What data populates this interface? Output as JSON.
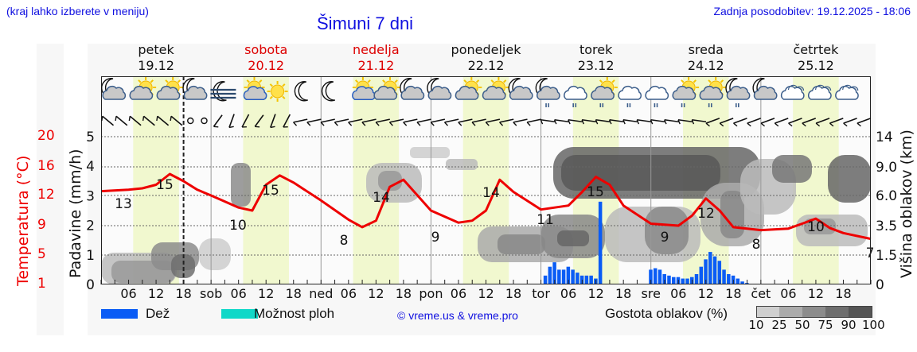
{
  "header": {
    "hint": "(kraj lahko izberete v meniju)",
    "title": "Šimuni 7 dni",
    "updated": "Zadnja posodobitev: 19.12.2025 - 18:06"
  },
  "days": [
    {
      "name": "petek",
      "date": "19.12",
      "weekend": false
    },
    {
      "name": "sobota",
      "date": "20.12",
      "weekend": true
    },
    {
      "name": "nedelja",
      "date": "21.12",
      "weekend": true
    },
    {
      "name": "ponedeljek",
      "date": "22.12",
      "weekend": false
    },
    {
      "name": "torek",
      "date": "23.12",
      "weekend": false
    },
    {
      "name": "sreda",
      "date": "24.12",
      "weekend": false
    },
    {
      "name": "četrtek",
      "date": "25.12",
      "weekend": false
    }
  ],
  "axes": {
    "temperature_label": "Temperatura (°C)",
    "temperature_ticks": [
      "20",
      "16",
      "12",
      "9",
      "5",
      "1"
    ],
    "precip_label": "Padavine (mm/h)",
    "precip_ticks": [
      "5",
      "4",
      "3",
      "2",
      "1",
      "0"
    ],
    "cloud_height_label": "Višina oblakov (km)",
    "cloud_height_ticks": [
      "14",
      "9.0",
      "6.0",
      "3.5",
      "1.5",
      "0"
    ],
    "x_ticks": [
      "06",
      "12",
      "18",
      "sob",
      "06",
      "12",
      "18",
      "ned",
      "06",
      "12",
      "18",
      "pon",
      "06",
      "12",
      "18",
      "tor",
      "06",
      "12",
      "18",
      "sre",
      "06",
      "12",
      "18",
      "čet",
      "06",
      "12",
      "18"
    ]
  },
  "icons_row": [
    "moon-cloud",
    "sun-cloud",
    "sun-cloud",
    "moon-cloud",
    "moon-fog",
    "sun-small-cloud",
    "sun",
    "moon",
    "moon",
    "sun-small-cloud",
    "sun-cloud",
    "moon-cloud",
    "moon-cloud",
    "sun-cloud",
    "sun-cloud",
    "moon-cloud",
    "moon-cloud-rain",
    "cloud-rain",
    "sun-cloud-rain",
    "cloud-rain",
    "cloud-rain",
    "sun-cloud-rain",
    "sun-cloud-rain",
    "moon-cloud-rain",
    "moon-cloud",
    "cloud",
    "cloud",
    "cloud"
  ],
  "legend": {
    "rain": "Dež",
    "rain_color": "#0a5cf5",
    "showers": "Možnost ploh",
    "showers_color": "#10d8c8",
    "copyright": "© vreme.us & vreme.pro",
    "cloud_density_label": "Gostota oblakov (%)",
    "cloud_density_ticks": [
      "10",
      "25",
      "50",
      "75",
      "90",
      "100"
    ],
    "cloud_density_colors": [
      "#cfcfcf",
      "#ababab",
      "#8c8c8c",
      "#6e6e6e",
      "#555555"
    ]
  },
  "chart_data": {
    "type": "line",
    "title": "Šimuni 7 dni",
    "xlabel": "",
    "ylabel": "Temperatura (°C) / Padavine (mm/h)",
    "x_unit": "hours from 19.12 00:00",
    "temperature_series": {
      "name": "Temperatura (°C)",
      "color": "#ee0000",
      "x": [
        0,
        6,
        9,
        12,
        15,
        18,
        21,
        24,
        30,
        33,
        36,
        39,
        42,
        48,
        54,
        57,
        60,
        63,
        66,
        72,
        78,
        81,
        84,
        87,
        90,
        96,
        102,
        105,
        108,
        111,
        114,
        120,
        126,
        129,
        132,
        135,
        138,
        144,
        150,
        153,
        156,
        159,
        162,
        168
      ],
      "values": [
        12.6,
        12.8,
        13.0,
        13.5,
        15.0,
        14.0,
        12.8,
        12.0,
        10.8,
        10.5,
        13.5,
        14.8,
        13.8,
        11.5,
        9.6,
        8.8,
        9.5,
        13.2,
        14.2,
        10.5,
        9.3,
        9.5,
        10.5,
        14.2,
        12.5,
        10.6,
        11.0,
        12.5,
        14.6,
        13.5,
        11.0,
        9.2,
        9.0,
        10.0,
        11.7,
        10.5,
        8.8,
        8.4,
        8.6,
        9.2,
        9.7,
        8.7,
        8.0,
        7.2
      ]
    },
    "temperature_labels": [
      {
        "x": 3,
        "value": 13
      },
      {
        "x": 14,
        "value": 15
      },
      {
        "x": 30,
        "value": 10
      },
      {
        "x": 38,
        "value": 15
      },
      {
        "x": 54,
        "value": 8
      },
      {
        "x": 62,
        "value": 14
      },
      {
        "x": 78,
        "value": 9
      },
      {
        "x": 86,
        "value": 14
      },
      {
        "x": 101,
        "value": 11
      },
      {
        "x": 110,
        "value": 15
      },
      {
        "x": 126,
        "value": 9
      },
      {
        "x": 134,
        "value": 12
      },
      {
        "x": 149,
        "value": 8
      },
      {
        "x": 157,
        "value": 10
      },
      {
        "x": 168,
        "value": 7
      }
    ],
    "precip_series": {
      "name": "Dež (mm/h)",
      "color": "#0a5cf5",
      "x": [
        97,
        98,
        99,
        100,
        101,
        102,
        103,
        104,
        105,
        106,
        107,
        108,
        109,
        110,
        111,
        112,
        120,
        121,
        122,
        123,
        124,
        125,
        126,
        127,
        128,
        129,
        130,
        131,
        132,
        133,
        134,
        135,
        136,
        137,
        138,
        139,
        140,
        141
      ],
      "values": [
        0.3,
        0.6,
        0.75,
        0.5,
        0.5,
        0.6,
        0.5,
        0.4,
        0.3,
        0.3,
        0.3,
        0.2,
        2.8,
        0,
        0,
        0,
        0.5,
        0.55,
        0.5,
        0.35,
        0.3,
        0.25,
        0.25,
        0.2,
        0.2,
        0.25,
        0.35,
        0.6,
        0.85,
        1.1,
        0.95,
        0.8,
        0.5,
        0.35,
        0.3,
        0.2,
        0.1,
        0.05
      ]
    },
    "ylim_precip": [
      0,
      5
    ],
    "temperature_ticks": [
      20,
      16,
      12,
      9,
      5,
      1
    ],
    "cloud_height_ticks_km": [
      14,
      9.0,
      6.0,
      3.5,
      1.5,
      0
    ],
    "now_marker_hour": 18,
    "daylight_bands_hours": [
      [
        7,
        17
      ],
      [
        31,
        41
      ],
      [
        55,
        65
      ],
      [
        79,
        89
      ],
      [
        103,
        113
      ],
      [
        127,
        137
      ],
      [
        151,
        161
      ]
    ],
    "grid": true,
    "legend_position": "bottom"
  }
}
